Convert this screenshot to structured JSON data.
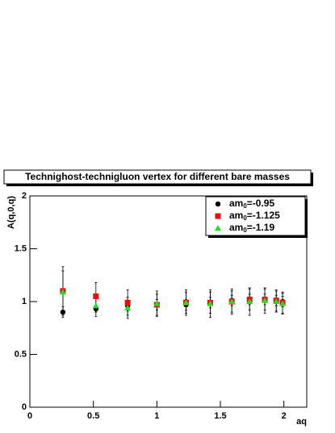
{
  "chart_data": {
    "type": "scatter",
    "title": "Technighost-technigluon vertex for different bare masses",
    "x_label": "aq",
    "y_label": "A(q,0,q)",
    "x": [
      0.26,
      0.52,
      0.77,
      1.0,
      1.23,
      1.42,
      1.59,
      1.73,
      1.85,
      1.94,
      1.99
    ],
    "series": [
      {
        "name": "am0=-0.95",
        "color": "#000000",
        "marker": "circle",
        "values": [
          0.9,
          0.93,
          0.96,
          0.97,
          0.97,
          0.99,
          1.01,
          1.02,
          1.02,
          1.01,
          1.0
        ],
        "errors": [
          0.05,
          0.03,
          0.05,
          0.05,
          0.05,
          0.05,
          0.05,
          0.05,
          0.05,
          0.05,
          0.05
        ]
      },
      {
        "name": "am0=-1.125",
        "color": "#e41010",
        "marker": "square",
        "values": [
          1.1,
          1.05,
          0.99,
          0.97,
          0.99,
          0.99,
          1.0,
          1.02,
          1.02,
          1.01,
          0.99
        ],
        "errors": [
          0.23,
          0.13,
          0.12,
          0.1,
          0.1,
          0.1,
          0.1,
          0.1,
          0.1,
          0.1,
          0.1
        ]
      },
      {
        "name": "am0=-1.19",
        "color": "#22dd22",
        "marker": "triangle",
        "values": [
          1.09,
          0.96,
          0.94,
          0.98,
          0.99,
          0.98,
          1.0,
          1.0,
          1.01,
          1.0,
          0.98
        ],
        "errors": [
          0.2,
          0.1,
          0.1,
          0.12,
          0.12,
          0.13,
          0.12,
          0.13,
          0.12,
          0.1,
          0.1
        ]
      }
    ],
    "xlim": [
      0,
      2.18
    ],
    "ylim": [
      0,
      2
    ],
    "xticks": [
      0,
      0.5,
      1,
      1.5,
      2
    ],
    "yticks": [
      0,
      0.5,
      1,
      1.5,
      2
    ],
    "legend": "upper right"
  }
}
